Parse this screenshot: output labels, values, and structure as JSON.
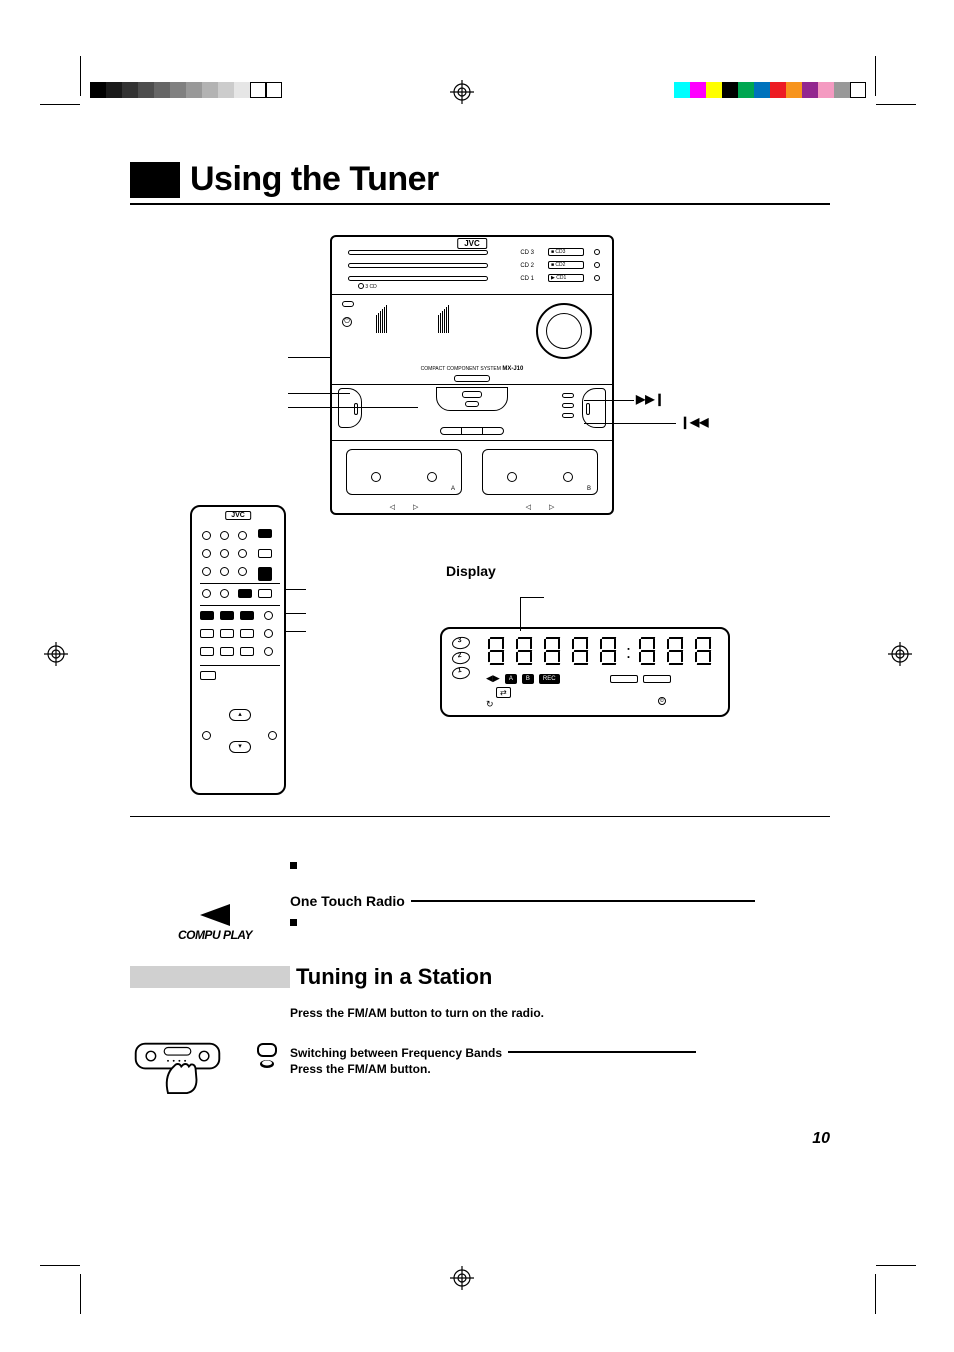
{
  "page_number": "10",
  "title": "Using the Tuner",
  "display_label": "Display",
  "brand": "JVC",
  "model_prefix": "COMPACT COMPONENT SYSTEM",
  "model": "MX-J10",
  "compuplay": "COMPU PLAY",
  "one_touch_heading": "One Touch Radio",
  "subsection_title": "Tuning in a Station",
  "instruction_1": "Press the FM/AM button to turn on the radio.",
  "switch_heading": "Switching between Frequency Bands",
  "instruction_2": "Press the FM/AM button.",
  "callout_ff": "▶▶❙",
  "callout_rw": "❙◀◀",
  "cd_labels": [
    "CD 3",
    "CD 2",
    "CD 1"
  ],
  "cd_buttons": [
    "■ CD3",
    "■ CD2",
    "▶ CD1"
  ],
  "cd3_text": "3 CD",
  "cass_a": "A",
  "cass_b": "B",
  "transport_rev": "◁",
  "transport_fwd": "▷",
  "indicators": {
    "a": "A",
    "b": "B",
    "rec": "REC",
    "arrows": "⇄"
  },
  "disc_nums": [
    "3",
    "2",
    "1"
  ],
  "grayscale": [
    "#000000",
    "#1a1a1a",
    "#333333",
    "#4d4d4d",
    "#666666",
    "#808080",
    "#999999",
    "#b3b3b3",
    "#cccccc",
    "#e6e6e6",
    "#ffffff",
    "#ffffff"
  ],
  "color_swatches": [
    "#00ffff",
    "#ff00ff",
    "#ffff00",
    "#000000",
    "#00a651",
    "#0072bc",
    "#ed1c24",
    "#f7941d",
    "#92278f",
    "#f49ac1",
    "#999999",
    "#ffffff"
  ]
}
